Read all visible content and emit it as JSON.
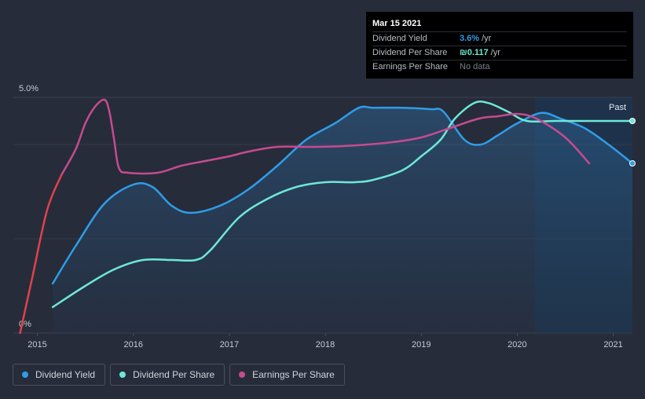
{
  "tooltip": {
    "date": "Mar 15 2021",
    "rows": [
      {
        "label": "Dividend Yield",
        "value": "3.6%",
        "unit": "/yr",
        "color": "#2f9de8"
      },
      {
        "label": "Dividend Per Share",
        "value": "₪0.117",
        "unit": "/yr",
        "color": "#6ee8d6"
      },
      {
        "label": "Earnings Per Share",
        "value": "No data",
        "unit": "",
        "color": "#7a7f8a"
      }
    ]
  },
  "legend": [
    {
      "label": "Dividend Yield",
      "color": "#2f9de8"
    },
    {
      "label": "Dividend Per Share",
      "color": "#6ee8d6"
    },
    {
      "label": "Earnings Per Share",
      "color": "#c64b8f"
    }
  ],
  "chart_data": {
    "type": "line",
    "past_label": "Past",
    "y_ticks": [
      "5.0%",
      "0%"
    ],
    "ylim": [
      0,
      5.0
    ],
    "x_ticks": [
      "2015",
      "2016",
      "2017",
      "2018",
      "2019",
      "2020",
      "2021"
    ],
    "x_tick_values": [
      2015,
      2016,
      2017,
      2018,
      2019,
      2020,
      2021
    ],
    "xlim": [
      2014.75,
      2021.2
    ],
    "series": [
      {
        "name": "Dividend Yield",
        "color": "#2f9de8",
        "filled": true,
        "x": [
          2015.16,
          2015.4,
          2015.7,
          2016.0,
          2016.2,
          2016.4,
          2016.6,
          2016.9,
          2017.2,
          2017.5,
          2017.8,
          2018.1,
          2018.35,
          2018.5,
          2018.8,
          2019.1,
          2019.23,
          2019.45,
          2019.62,
          2019.8,
          2020.0,
          2020.25,
          2020.45,
          2020.7,
          2020.95,
          2021.2
        ],
        "values": [
          1.05,
          1.85,
          2.75,
          3.15,
          3.1,
          2.7,
          2.55,
          2.7,
          3.05,
          3.55,
          4.1,
          4.45,
          4.78,
          4.78,
          4.78,
          4.75,
          4.7,
          4.1,
          4.0,
          4.2,
          4.45,
          4.67,
          4.55,
          4.35,
          4.0,
          3.6
        ]
      },
      {
        "name": "Dividend Per Share",
        "color": "#6ee8d6",
        "filled": false,
        "x": [
          2015.16,
          2015.5,
          2015.8,
          2016.1,
          2016.4,
          2016.65,
          2016.8,
          2017.1,
          2017.4,
          2017.7,
          2018.0,
          2018.3,
          2018.5,
          2018.8,
          2019.0,
          2019.2,
          2019.35,
          2019.55,
          2019.7,
          2019.9,
          2020.1,
          2020.4,
          2020.8,
          2021.2
        ],
        "values": [
          0.55,
          1.0,
          1.35,
          1.55,
          1.55,
          1.55,
          1.75,
          2.45,
          2.85,
          3.1,
          3.2,
          3.2,
          3.25,
          3.45,
          3.75,
          4.1,
          4.55,
          4.88,
          4.88,
          4.7,
          4.5,
          4.5,
          4.5,
          4.5
        ]
      },
      {
        "name": "Earnings Per Share",
        "color": "#c64b8f",
        "filled": false,
        "x": [
          2015.25,
          2015.4,
          2015.5,
          2015.6,
          2015.7,
          2015.75,
          2015.8,
          2015.85,
          2015.95,
          2016.25,
          2016.5,
          2016.75,
          2017.0,
          2017.2,
          2017.5,
          2017.9,
          2018.3,
          2018.7,
          2019.0,
          2019.3,
          2019.6,
          2019.8,
          2020.0,
          2020.2,
          2020.5,
          2020.75
        ],
        "values": [
          3.35,
          3.9,
          4.45,
          4.8,
          4.95,
          4.7,
          4.1,
          3.5,
          3.4,
          3.4,
          3.55,
          3.65,
          3.75,
          3.85,
          3.95,
          3.95,
          3.98,
          4.05,
          4.15,
          4.35,
          4.55,
          4.6,
          4.65,
          4.55,
          4.15,
          3.6
        ]
      },
      {
        "name": "Earnings Per Share (initial segment)",
        "color": "#e0424a",
        "filled": false,
        "x": [
          2014.82,
          2014.95,
          2015.1,
          2015.25
        ],
        "values": [
          0.0,
          1.2,
          2.6,
          3.35
        ]
      }
    ]
  }
}
